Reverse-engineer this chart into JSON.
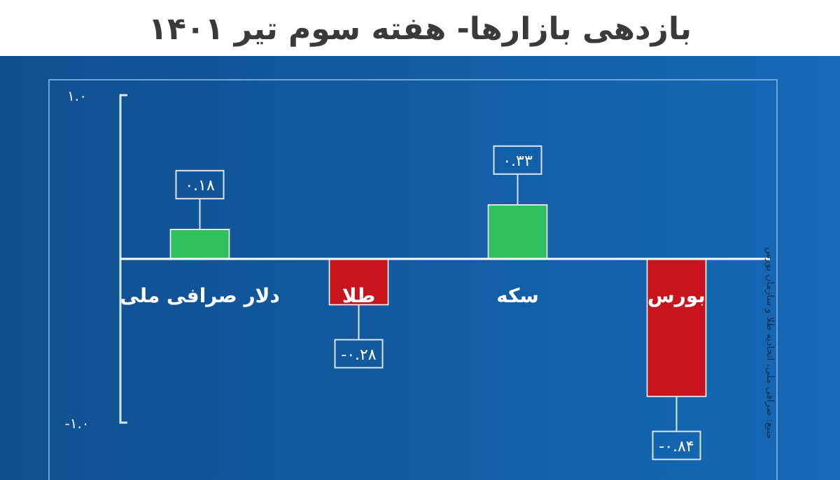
{
  "chart_data": {
    "type": "bar",
    "title": "بازدهی بازارها- هفته سوم تیر ۱۴۰۱",
    "categories": [
      "دلار صرافی ملی",
      "طلا",
      "سکه",
      "بورس"
    ],
    "values": [
      0.18,
      -0.28,
      0.33,
      -0.84
    ],
    "colors": [
      "#2fbf5c",
      "#c8141e",
      "#2fbf5c",
      "#c8141e"
    ],
    "value_labels": [
      "۰.۱۸",
      "-۰.۲۸",
      "۰.۳۳",
      "-۰.۸۴"
    ],
    "ylim": [
      -1,
      1
    ],
    "yticks": [
      {
        "value": 1,
        "label": "۱.۰"
      },
      {
        "value": -1,
        "label": "-۱.۰"
      }
    ],
    "annotations": [
      "منبع: صرافی ملی، اتحادیه طلا و سازمان بورس"
    ]
  }
}
